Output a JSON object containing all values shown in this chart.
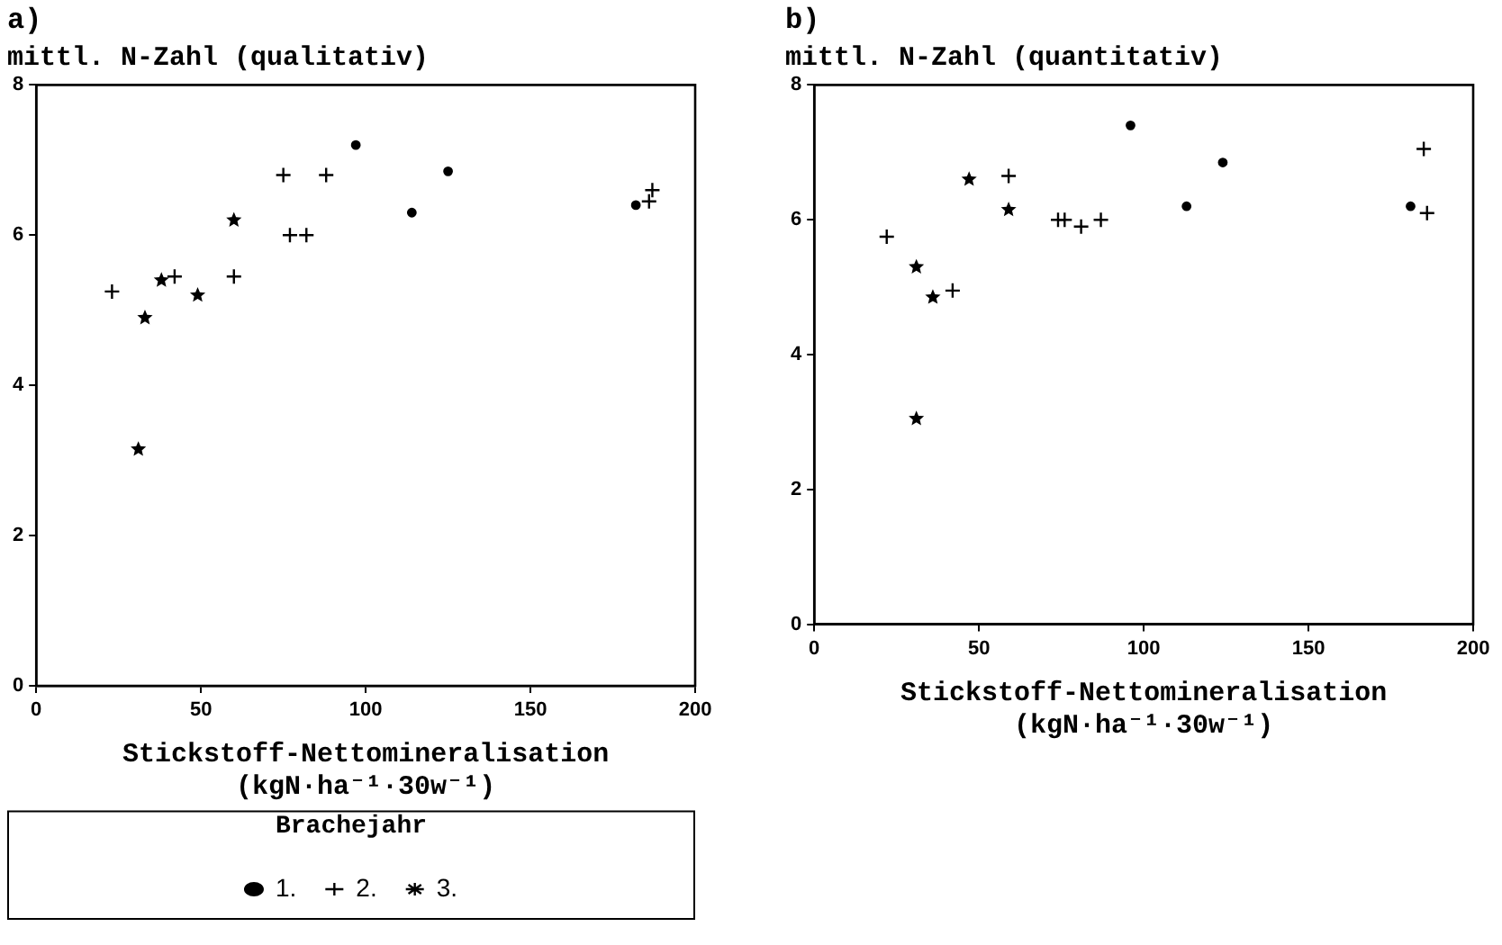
{
  "chart_data": [
    {
      "type": "scatter",
      "title": "a)",
      "ylabel": "mittl. N-Zahl (qualitativ)",
      "xlabel": "Stickstoff-Nettomineralisation\n(kgN·ha⁻¹·30w⁻¹)",
      "legend_title": "Brachejahr",
      "legend": "bottom",
      "xlim": [
        0,
        200
      ],
      "xticks": [
        0,
        50,
        100,
        150,
        200
      ],
      "ylim": [
        0,
        8
      ],
      "yticks": [
        0,
        2,
        4,
        6,
        8
      ],
      "grid": false,
      "series": [
        {
          "name": "1.",
          "color": "#000000",
          "marker": "circle",
          "x": [
            97,
            125,
            114,
            182
          ],
          "values": [
            7.2,
            6.85,
            6.3,
            6.4
          ]
        },
        {
          "name": "2.",
          "color": "#000000",
          "marker": "cross",
          "x": [
            23,
            42,
            60,
            75,
            88,
            77,
            82,
            186,
            187
          ],
          "values": [
            5.25,
            5.45,
            5.45,
            6.8,
            6.8,
            6.0,
            6.0,
            6.45,
            6.6
          ]
        },
        {
          "name": "3.",
          "color": "#000000",
          "marker": "star",
          "x": [
            31,
            33,
            38,
            49,
            60
          ],
          "values": [
            3.15,
            4.9,
            5.4,
            5.2,
            6.2
          ]
        }
      ]
    },
    {
      "type": "scatter",
      "title": "b)",
      "ylabel": "mittl. N-Zahl (quantitativ)",
      "xlabel": "Stickstoff-Nettomineralisation\n(kgN·ha⁻¹·30w⁻¹)",
      "legend": false,
      "xlim": [
        0,
        200
      ],
      "xticks": [
        0,
        50,
        100,
        150,
        200
      ],
      "ylim": [
        0,
        8
      ],
      "yticks": [
        0,
        2,
        4,
        6,
        8
      ],
      "grid": false,
      "series": [
        {
          "name": "1.",
          "color": "#000000",
          "marker": "circle",
          "x": [
            96,
            124,
            113,
            181
          ],
          "values": [
            7.4,
            6.85,
            6.2,
            6.2
          ]
        },
        {
          "name": "2.",
          "color": "#000000",
          "marker": "cross",
          "x": [
            22,
            42,
            59,
            74,
            76,
            81,
            87,
            185,
            186
          ],
          "values": [
            5.75,
            4.95,
            6.65,
            6.0,
            6.0,
            5.9,
            6.0,
            7.05,
            6.1
          ]
        },
        {
          "name": "3.",
          "color": "#000000",
          "marker": "star",
          "x": [
            31,
            31,
            36,
            47,
            59
          ],
          "values": [
            3.05,
            5.3,
            4.85,
            6.6,
            6.15
          ]
        }
      ]
    }
  ]
}
